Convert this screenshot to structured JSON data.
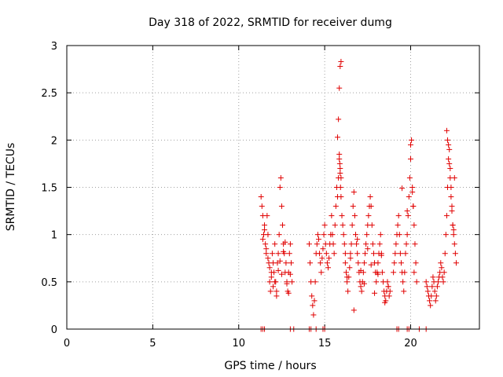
{
  "chart_data": {
    "type": "scatter",
    "title": "Day 318 of 2022, SRMTID for receiver dumg",
    "xlabel": "GPS time / hours",
    "ylabel": "SRMTID / TECUs",
    "xlim": [
      0,
      24
    ],
    "ylim": [
      0,
      3
    ],
    "xticks": [
      0,
      5,
      10,
      15,
      20
    ],
    "yticks": [
      0,
      0.5,
      1,
      1.5,
      2,
      2.5,
      3
    ],
    "ytick_labels": [
      "0",
      "0.5",
      "1",
      "1.5",
      "2",
      "2.5",
      "3"
    ],
    "grid": true,
    "marker": "+",
    "color": "#e00000",
    "series": [
      {
        "name": "SRMTID",
        "x": [
          11.3,
          11.35,
          11.4,
          11.45,
          11.5,
          11.55,
          11.6,
          11.65,
          11.7,
          11.75,
          11.8,
          11.85,
          11.9,
          11.95,
          12.0,
          12.05,
          12.1,
          12.15,
          12.2,
          12.25,
          12.3,
          12.35,
          12.4,
          12.45,
          12.5,
          12.55,
          12.6,
          12.65,
          12.7,
          12.75,
          12.8,
          12.85,
          12.9,
          12.95,
          13.0,
          13.05,
          13.1,
          11.4,
          11.5,
          11.6,
          11.7,
          11.8,
          11.9,
          12.0,
          12.1,
          12.2,
          12.3,
          12.4,
          12.5,
          12.6,
          12.7,
          12.8,
          12.9,
          13.0,
          14.1,
          14.15,
          14.2,
          14.25,
          14.3,
          14.35,
          14.4,
          14.45,
          14.5,
          14.55,
          14.6,
          14.65,
          14.7,
          14.75,
          14.8,
          14.85,
          14.9,
          14.95,
          15.0,
          15.05,
          15.1,
          15.15,
          15.2,
          15.25,
          15.3,
          15.35,
          15.4,
          15.45,
          15.5,
          15.55,
          15.6,
          15.65,
          15.7,
          15.75,
          15.8,
          15.85,
          15.9,
          15.95,
          16.0,
          16.05,
          16.1,
          16.15,
          16.2,
          15.75,
          15.8,
          15.85,
          15.9,
          15.95,
          15.85,
          15.9,
          15.95,
          15.88,
          15.92,
          16.2,
          16.25,
          16.3,
          16.35,
          16.4,
          16.45,
          16.5,
          16.55,
          16.6,
          16.65,
          16.7,
          16.75,
          16.8,
          16.85,
          16.9,
          16.95,
          17.0,
          17.05,
          17.1,
          17.15,
          17.2,
          17.25,
          17.3,
          17.35,
          17.4,
          17.45,
          17.5,
          17.55,
          17.6,
          17.65,
          17.7,
          17.75,
          17.8,
          17.85,
          17.9,
          17.95,
          18.0,
          18.05,
          18.1,
          18.15,
          18.2,
          18.25,
          18.3,
          18.35,
          18.4,
          18.45,
          18.5,
          18.55,
          18.6,
          18.65,
          18.7,
          18.75,
          18.8,
          16.3,
          16.5,
          16.7,
          16.9,
          17.1,
          17.3,
          17.5,
          17.7,
          17.9,
          18.1,
          18.3,
          18.5,
          18.7,
          19.0,
          19.05,
          19.1,
          19.15,
          19.2,
          19.25,
          19.3,
          19.35,
          19.4,
          19.45,
          19.5,
          19.55,
          19.6,
          19.65,
          19.7,
          19.75,
          19.8,
          19.85,
          19.9,
          19.95,
          20.0,
          20.05,
          20.1,
          20.15,
          20.2,
          20.25,
          20.3,
          20.35,
          19.5,
          19.8,
          20.0,
          20.1,
          20.15,
          20.2,
          20.9,
          20.95,
          21.0,
          21.05,
          21.1,
          21.15,
          21.2,
          21.25,
          21.3,
          21.35,
          21.4,
          21.45,
          21.5,
          21.55,
          21.6,
          21.65,
          21.7,
          21.75,
          21.8,
          21.85,
          21.9,
          21.95,
          22.0,
          22.05,
          22.1,
          22.15,
          22.2,
          22.25,
          22.3,
          22.35,
          22.4,
          22.45,
          22.5,
          22.55,
          22.6,
          22.65,
          22.1,
          22.15,
          22.2,
          22.25,
          22.3,
          22.35,
          22.4,
          22.45,
          22.5,
          22.55,
          11.3,
          11.4,
          11.5,
          13.0,
          13.2,
          14.1,
          14.2,
          14.5,
          14.9,
          15.0,
          19.2,
          19.3,
          19.8,
          19.9,
          20.5,
          20.9
        ],
        "y": [
          1.4,
          1.3,
          1.2,
          1.0,
          1.1,
          0.9,
          0.8,
          1.2,
          1.0,
          0.7,
          0.5,
          0.4,
          0.6,
          0.8,
          0.7,
          0.6,
          0.9,
          0.5,
          0.4,
          0.7,
          0.8,
          1.0,
          1.5,
          1.6,
          1.3,
          1.1,
          0.9,
          0.8,
          0.6,
          0.7,
          0.5,
          0.4,
          0.6,
          0.8,
          0.9,
          0.7,
          0.5,
          0.95,
          1.05,
          0.85,
          0.75,
          0.65,
          0.55,
          0.45,
          0.5,
          0.35,
          0.62,
          0.72,
          0.58,
          0.82,
          0.92,
          0.48,
          0.38,
          0.58,
          0.9,
          0.7,
          0.5,
          0.35,
          0.25,
          0.15,
          0.3,
          0.5,
          0.8,
          0.9,
          1.0,
          0.95,
          0.8,
          0.7,
          0.6,
          0.75,
          0.85,
          1.0,
          1.1,
          0.9,
          0.8,
          0.7,
          0.65,
          0.75,
          0.9,
          1.0,
          1.2,
          1.0,
          0.9,
          0.8,
          1.1,
          1.3,
          1.5,
          1.4,
          1.6,
          1.8,
          1.7,
          1.4,
          1.2,
          1.1,
          1.0,
          0.9,
          0.8,
          2.03,
          2.22,
          2.55,
          2.78,
          2.83,
          1.85,
          1.65,
          1.6,
          1.75,
          1.5,
          0.7,
          0.6,
          0.5,
          0.4,
          0.55,
          0.65,
          0.8,
          0.9,
          1.1,
          1.3,
          1.45,
          1.2,
          1.0,
          0.9,
          0.8,
          0.7,
          0.6,
          0.5,
          0.45,
          0.4,
          0.5,
          0.6,
          0.7,
          0.8,
          0.9,
          1.0,
          1.1,
          1.2,
          1.3,
          1.4,
          1.3,
          1.1,
          0.9,
          0.8,
          0.7,
          0.6,
          0.5,
          0.6,
          0.7,
          0.8,
          0.9,
          1.0,
          0.8,
          0.6,
          0.5,
          0.4,
          0.35,
          0.3,
          0.4,
          0.5,
          0.45,
          0.35,
          0.4,
          0.55,
          0.75,
          0.2,
          0.95,
          0.62,
          0.48,
          0.85,
          0.68,
          0.38,
          0.58,
          0.78,
          0.28,
          0.45,
          0.6,
          0.7,
          0.8,
          0.9,
          1.0,
          1.1,
          1.2,
          1.0,
          0.8,
          0.7,
          0.6,
          0.5,
          0.4,
          0.6,
          0.8,
          0.9,
          1.0,
          1.2,
          1.4,
          1.6,
          1.8,
          2.0,
          1.5,
          1.3,
          1.1,
          0.9,
          0.7,
          0.5,
          1.49,
          1.25,
          1.95,
          1.45,
          1.3,
          0.6,
          0.5,
          0.45,
          0.4,
          0.35,
          0.3,
          0.25,
          0.35,
          0.45,
          0.55,
          0.5,
          0.4,
          0.3,
          0.35,
          0.45,
          0.5,
          0.55,
          0.6,
          0.7,
          0.65,
          0.55,
          0.5,
          0.6,
          0.8,
          1.0,
          1.2,
          1.5,
          1.8,
          1.9,
          1.7,
          1.5,
          1.3,
          1.1,
          1.0,
          0.9,
          0.8,
          0.7,
          2.1,
          2.0,
          1.95,
          1.75,
          1.6,
          1.4,
          1.25,
          1.1,
          1.05,
          1.6,
          0,
          0,
          0,
          0,
          0,
          0,
          0,
          0,
          0,
          0,
          0,
          0,
          0,
          0,
          0,
          0
        ]
      }
    ]
  }
}
